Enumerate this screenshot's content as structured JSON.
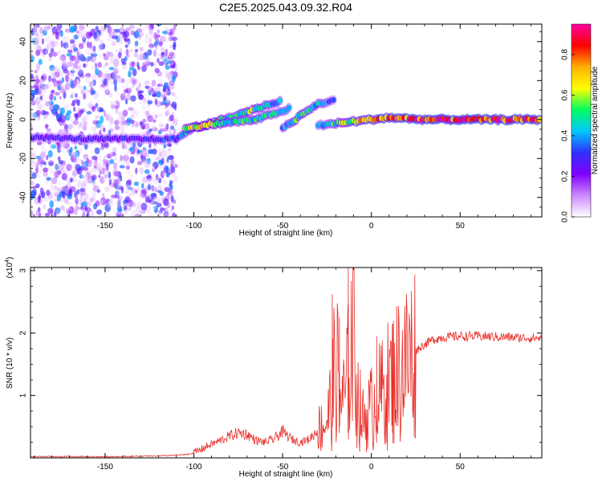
{
  "title": "C2E5.2025.043.09.32.R04",
  "colors": {
    "snr_line": "#e8302a",
    "cbar_stops": [
      "#ffffff",
      "#cc88ff",
      "#8000ff",
      "#3030ff",
      "#00c8ff",
      "#00ff60",
      "#ffff00",
      "#ffb000",
      "#ff0000",
      "#ff00a0"
    ]
  },
  "chart_data": [
    {
      "type": "heatmap",
      "xlabel": "Height of straight line (km)",
      "ylabel": "Frequency (Hz)",
      "xlim": [
        -192,
        96
      ],
      "ylim": [
        -50,
        49
      ],
      "xticks": [
        -150,
        -100,
        -50,
        0,
        50
      ],
      "yticks": [
        -40,
        -20,
        0,
        20,
        40
      ],
      "colorbar": {
        "label": "Normalized spectral amplitude",
        "range": [
          0,
          0.95
        ],
        "ticks": [
          "0.0",
          "0.2",
          "0.4",
          "0.6",
          "0.8"
        ]
      },
      "tracks": [
        {
          "x": [
            -192,
            -160,
            -130,
            -110,
            -100,
            -90,
            -80,
            -70,
            -60,
            -50
          ],
          "y": [
            -9,
            -10,
            -10,
            -10,
            -4,
            -2,
            1,
            4,
            7,
            10
          ],
          "amplitude": [
            0.3,
            0.3,
            0.3,
            0.35,
            0.6,
            0.7,
            0.5,
            0.6,
            0.55,
            0.4
          ]
        },
        {
          "x": [
            -105,
            -95,
            -85,
            -75,
            -65,
            -55,
            -45
          ],
          "y": [
            -5,
            -3,
            -2,
            -1,
            0,
            3,
            6
          ],
          "amplitude": [
            0.6,
            0.7,
            0.6,
            0.5,
            0.55,
            0.5,
            0.4
          ]
        },
        {
          "x": [
            -50,
            -45,
            -40,
            -35,
            -30,
            -25,
            -20
          ],
          "y": [
            -4,
            -2,
            2,
            5,
            8,
            9,
            10
          ],
          "amplitude": [
            0.4,
            0.5,
            0.6,
            0.5,
            0.5,
            0.4,
            0.3
          ]
        },
        {
          "x": [
            -30,
            -20,
            -10,
            0,
            10,
            20,
            30,
            50,
            70,
            96
          ],
          "y": [
            -3,
            -2,
            -1,
            0,
            1,
            0.5,
            0,
            0,
            0,
            0
          ],
          "amplitude": [
            0.4,
            0.55,
            0.7,
            0.8,
            0.85,
            0.9,
            0.9,
            0.9,
            0.9,
            0.9
          ]
        }
      ],
      "noise_region_x": [
        -192,
        -110
      ]
    },
    {
      "type": "line",
      "xlabel": "Height of straight line (km)",
      "ylabel": "SNR (10 * v/v)",
      "y_multiplier": "(x10",
      "y_multiplier_exp": "4",
      "y_multiplier_close": ")",
      "xlim": [
        -192,
        96
      ],
      "ylim": [
        0,
        3.05
      ],
      "xticks": [
        -150,
        -100,
        -50,
        0,
        50
      ],
      "yticks": [
        1,
        2,
        3
      ],
      "x": [
        -192,
        -150,
        -120,
        -105,
        -100,
        -95,
        -90,
        -85,
        -80,
        -75,
        -70,
        -65,
        -60,
        -55,
        -50,
        -45,
        -40,
        -35,
        -30,
        -25,
        -22,
        -20,
        -18,
        -15,
        -12,
        -10,
        -8,
        -5,
        0,
        5,
        10,
        15,
        20,
        25,
        30,
        35,
        40,
        50,
        60,
        70,
        80,
        90,
        96
      ],
      "y": [
        0.02,
        0.02,
        0.03,
        0.05,
        0.08,
        0.15,
        0.22,
        0.28,
        0.35,
        0.4,
        0.38,
        0.28,
        0.25,
        0.3,
        0.42,
        0.3,
        0.25,
        0.3,
        0.45,
        0.6,
        1.0,
        1.6,
        1.1,
        0.9,
        1.6,
        2.3,
        1.0,
        0.6,
        0.8,
        1.0,
        1.2,
        1.4,
        1.55,
        1.72,
        1.82,
        1.9,
        1.93,
        1.95,
        1.95,
        1.94,
        1.93,
        1.92,
        1.92
      ],
      "spikes": [
        {
          "x": -22,
          "y": 2.62
        },
        {
          "x": -13,
          "y": 3.05
        },
        {
          "x": -18,
          "y": 2.25
        },
        {
          "x": 12,
          "y": 2.15
        },
        {
          "x": 3,
          "y": 1.95
        }
      ]
    }
  ]
}
